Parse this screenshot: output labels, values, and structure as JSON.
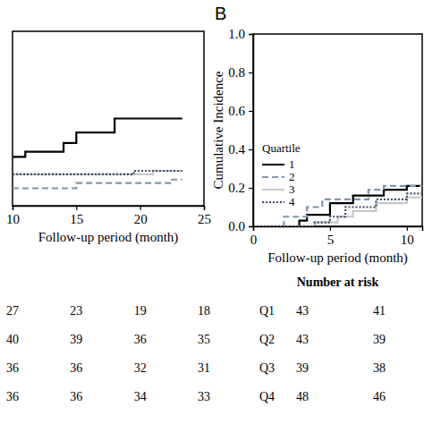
{
  "chart_data": [
    {
      "type": "line",
      "xlabel": "Follow-up period (month)",
      "xlim": [
        10,
        25
      ],
      "xticks": [
        10,
        15,
        20,
        25
      ],
      "ylim": [
        0,
        1
      ],
      "tick_labels": "x",
      "series": [
        {
          "color": "#000000",
          "line_style": "solid",
          "x": [
            10,
            11,
            14,
            15,
            18,
            23.3
          ],
          "values": [
            0.28,
            0.31,
            0.36,
            0.42,
            0.5,
            0.5
          ]
        },
        {
          "color": "#8195ad",
          "line_style": "dashed",
          "x": [
            10,
            15,
            22.5,
            23.3
          ],
          "values": [
            0.1,
            0.13,
            0.15,
            0.15
          ]
        },
        {
          "color": "#c8c8c8",
          "line_style": "solid",
          "x": [
            10,
            21,
            23.3
          ],
          "values": [
            0.18,
            0.2,
            0.2
          ]
        },
        {
          "color": "#3b4a6b",
          "line_style": "dotted",
          "x": [
            10,
            19.5,
            23.3
          ],
          "values": [
            0.18,
            0.2,
            0.2
          ]
        }
      ],
      "risk_table": {
        "times": [
          10,
          15,
          20,
          25
        ],
        "rows": [
          {
            "values": [
              27,
              23,
              19,
              18
            ]
          },
          {
            "values": [
              40,
              39,
              36,
              35
            ]
          },
          {
            "values": [
              36,
              36,
              32,
              31
            ]
          },
          {
            "values": [
              36,
              36,
              34,
              33
            ]
          }
        ]
      }
    },
    {
      "type": "line",
      "title": "B",
      "xlabel": "Follow-up period (month)",
      "ylabel": "Cumulative Incidence",
      "xlim": [
        0,
        11
      ],
      "xticks": [
        0,
        5,
        10
      ],
      "ylim": [
        0,
        1
      ],
      "yticks": [
        {
          "value": 0,
          "label": "0.0"
        },
        {
          "value": 0.2,
          "label": "0.2"
        },
        {
          "value": 0.4,
          "label": "0.4"
        },
        {
          "value": 0.6,
          "label": "0.6"
        },
        {
          "value": 0.8,
          "label": "0.8"
        },
        {
          "value": 1,
          "label": "1.0"
        }
      ],
      "legend": "left",
      "legend_title": "Quartile",
      "series": [
        {
          "name": "1",
          "color": "#000000",
          "line_style": "solid",
          "x": [
            0,
            3,
            3.5,
            5,
            6.5,
            8.5,
            10,
            11
          ],
          "values": [
            0,
            0.03,
            0.06,
            0.12,
            0.16,
            0.19,
            0.21,
            0.21
          ]
        },
        {
          "name": "2",
          "color": "#8195ad",
          "line_style": "dashed",
          "x": [
            0,
            2,
            3.5,
            4.5,
            7.5,
            8.5,
            11
          ],
          "values": [
            0,
            0.05,
            0.1,
            0.14,
            0.19,
            0.21,
            0.21
          ]
        },
        {
          "name": "3",
          "color": "#c8c8c8",
          "line_style": "solid",
          "x": [
            0,
            4,
            5.5,
            6.5,
            8,
            10,
            11
          ],
          "values": [
            0,
            0.02,
            0.05,
            0.08,
            0.12,
            0.15,
            0.15
          ]
        },
        {
          "name": "4",
          "color": "#3b4a6b",
          "line_style": "dotted",
          "x": [
            0,
            4,
            5,
            6,
            8,
            10,
            11
          ],
          "values": [
            0,
            0.02,
            0.05,
            0.1,
            0.14,
            0.17,
            0.17
          ]
        }
      ],
      "risk_table": {
        "title": "Number at risk",
        "times": [
          0,
          5
        ],
        "rows": [
          {
            "label": "Q1",
            "values": [
              43,
              41
            ]
          },
          {
            "label": "Q2",
            "values": [
              43,
              39
            ]
          },
          {
            "label": "Q3",
            "values": [
              39,
              38
            ]
          },
          {
            "label": "Q4",
            "values": [
              48,
              46
            ]
          }
        ]
      }
    }
  ]
}
